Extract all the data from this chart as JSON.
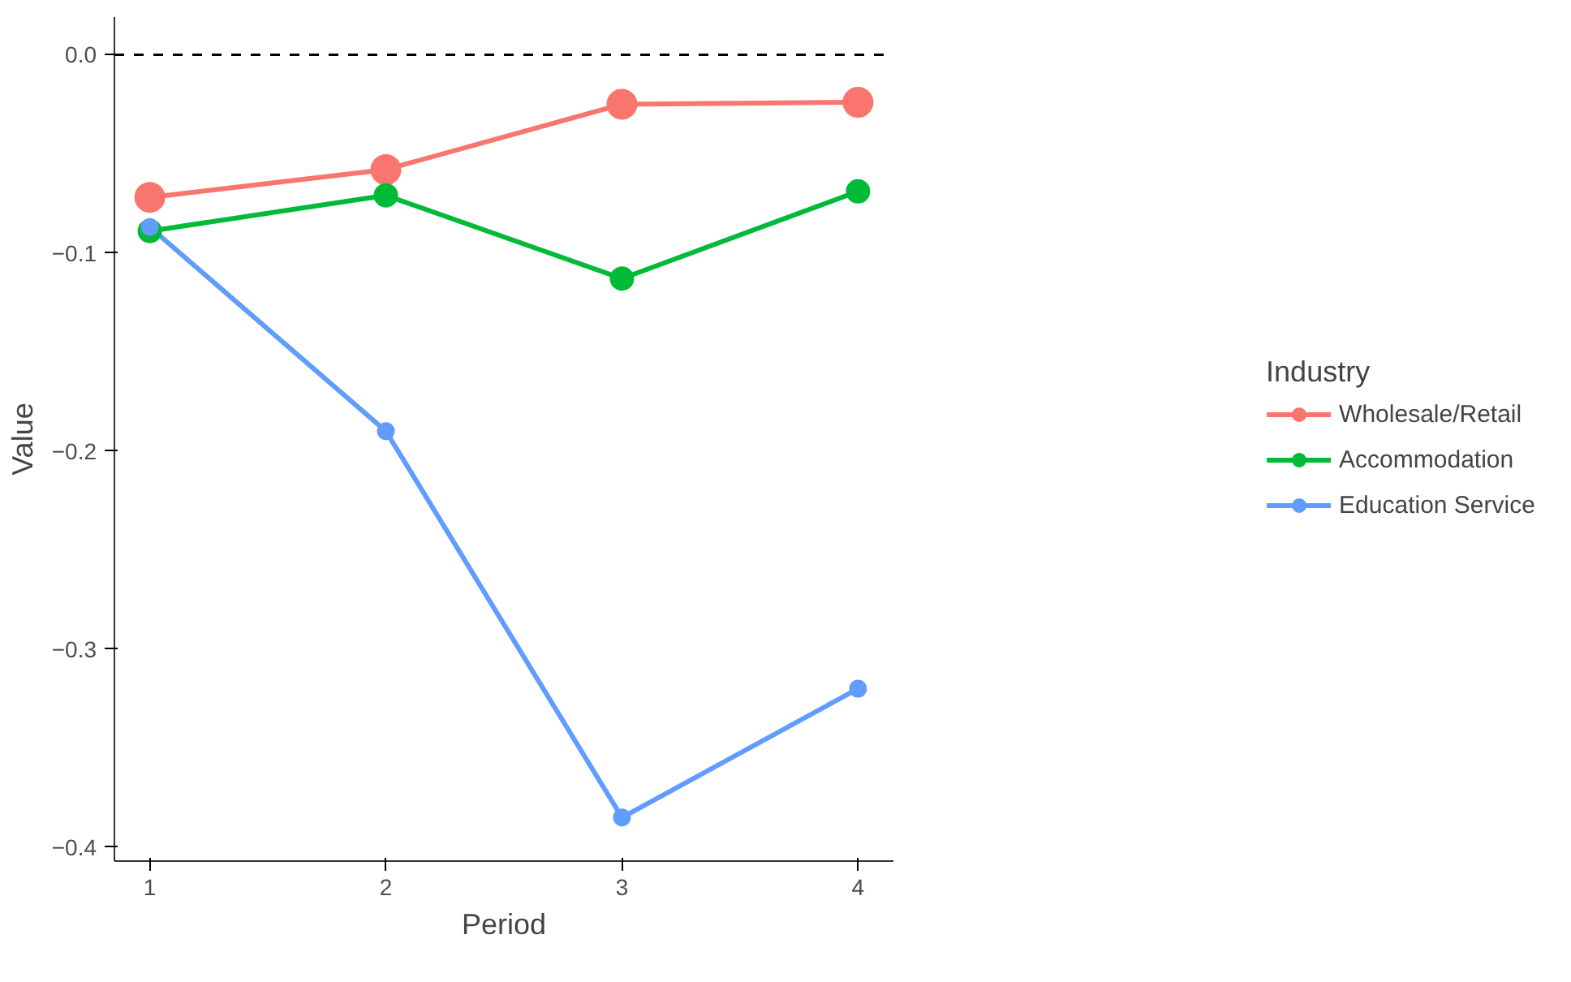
{
  "chart_data": {
    "type": "line",
    "xlabel": "Period",
    "ylabel": "Value",
    "legend_title": "Industry",
    "x": [
      1,
      2,
      3,
      4
    ],
    "series": [
      {
        "name": "Wholesale/Retail",
        "color": "#f8766d",
        "values": [
          -0.072,
          -0.058,
          -0.025,
          -0.024
        ]
      },
      {
        "name": "Accommodation",
        "color": "#00ba38",
        "values": [
          -0.089,
          -0.071,
          -0.113,
          -0.069
        ]
      },
      {
        "name": "Education Service",
        "color": "#619cff",
        "values": [
          -0.087,
          -0.19,
          -0.385,
          -0.32
        ]
      }
    ],
    "xlim": [
      0.85,
      4.15
    ],
    "ylim": [
      -0.407,
      0.019
    ],
    "xticks": [
      1,
      2,
      3,
      4
    ],
    "yticks": [
      {
        "value": 0,
        "label": "0.0"
      },
      -0.1,
      -0.2,
      -0.3,
      -0.4
    ],
    "ref_lines": [
      {
        "axis": "y",
        "value": 0,
        "label": null,
        "color": "#000000",
        "line_style": "dashed"
      }
    ],
    "grid": false,
    "legend": "right",
    "marker": "circle",
    "line_style": "solid"
  }
}
